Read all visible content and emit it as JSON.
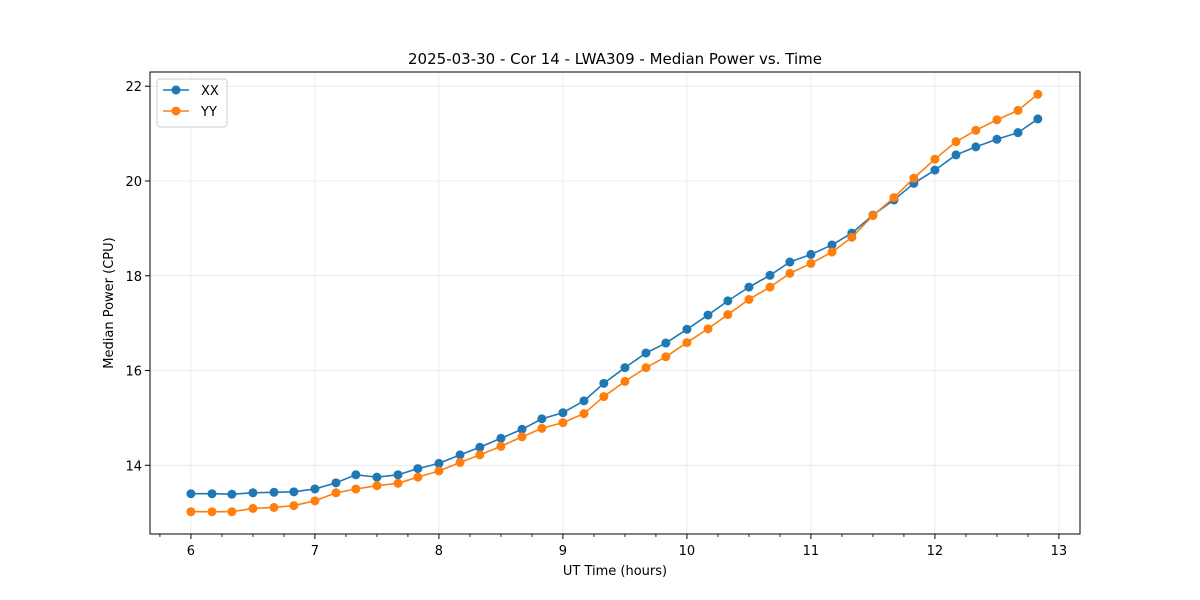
{
  "chart_data": {
    "type": "line",
    "title": "2025-03-30 - Cor 14 - LWA309 - Median Power vs. Time",
    "xlabel": "UT Time (hours)",
    "ylabel": "Median Power (CPU)",
    "xlim": [
      5.67,
      13.17
    ],
    "ylim": [
      12.55,
      22.3
    ],
    "xticks": [
      6,
      7,
      8,
      9,
      10,
      11,
      12,
      13
    ],
    "xtick_labels": [
      "6",
      "7",
      "8",
      "9",
      "10",
      "11",
      "12",
      "13"
    ],
    "yticks": [
      14,
      16,
      18,
      20,
      22
    ],
    "ytick_labels": [
      "14",
      "16",
      "18",
      "20",
      "22"
    ],
    "grid": true,
    "legend_position": "top-left",
    "series": [
      {
        "name": "XX",
        "color": "#1f77b4",
        "x": [
          6.0,
          6.17,
          6.33,
          6.5,
          6.67,
          6.83,
          7.0,
          7.17,
          7.33,
          7.5,
          7.67,
          7.83,
          8.0,
          8.17,
          8.33,
          8.5,
          8.67,
          8.83,
          9.0,
          9.17,
          9.33,
          9.5,
          9.67,
          9.83,
          10.0,
          10.17,
          10.33,
          10.5,
          10.67,
          10.83,
          11.0,
          11.17,
          11.33,
          11.5,
          11.67,
          11.83,
          12.0,
          12.17,
          12.33,
          12.5,
          12.67,
          12.83
        ],
        "values": [
          13.4,
          13.4,
          13.39,
          13.42,
          13.43,
          13.44,
          13.5,
          13.63,
          13.8,
          13.75,
          13.8,
          13.93,
          14.04,
          14.22,
          14.38,
          14.57,
          14.76,
          14.98,
          15.11,
          15.36,
          15.73,
          16.06,
          16.37,
          16.58,
          16.87,
          17.17,
          17.47,
          17.76,
          18.01,
          18.29,
          18.45,
          18.65,
          18.9,
          19.28,
          19.6,
          19.95,
          20.23,
          20.55,
          20.72,
          20.88,
          21.02,
          21.31
        ]
      },
      {
        "name": "YY",
        "color": "#ff7f0e",
        "x": [
          6.0,
          6.17,
          6.33,
          6.5,
          6.67,
          6.83,
          7.0,
          7.17,
          7.33,
          7.5,
          7.67,
          7.83,
          8.0,
          8.17,
          8.33,
          8.5,
          8.67,
          8.83,
          9.0,
          9.17,
          9.33,
          9.5,
          9.67,
          9.83,
          10.0,
          10.17,
          10.33,
          10.5,
          10.67,
          10.83,
          11.0,
          11.17,
          11.33,
          11.5,
          11.67,
          11.83,
          12.0,
          12.17,
          12.33,
          12.5,
          12.67,
          12.83
        ],
        "values": [
          13.02,
          13.02,
          13.02,
          13.09,
          13.11,
          13.15,
          13.25,
          13.42,
          13.5,
          13.57,
          13.62,
          13.75,
          13.88,
          14.06,
          14.22,
          14.4,
          14.6,
          14.78,
          14.9,
          15.09,
          15.45,
          15.77,
          16.06,
          16.29,
          16.59,
          16.88,
          17.18,
          17.5,
          17.76,
          18.05,
          18.26,
          18.5,
          18.81,
          19.27,
          19.65,
          20.06,
          20.46,
          20.83,
          21.07,
          21.29,
          21.49,
          21.83
        ]
      }
    ]
  }
}
